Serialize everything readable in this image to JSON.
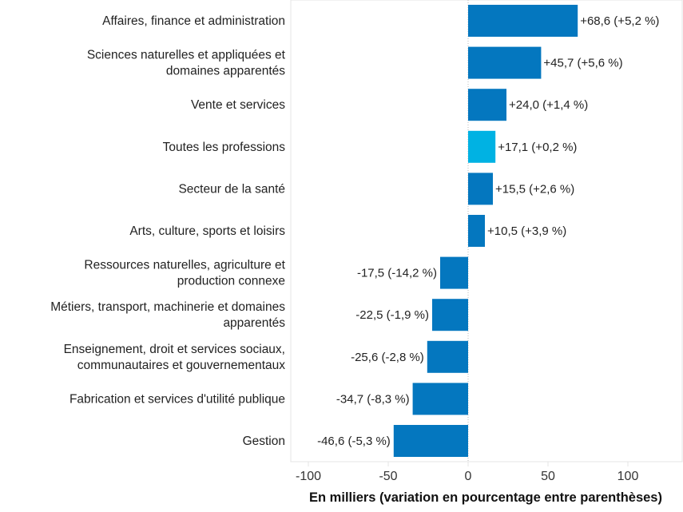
{
  "chart_data": {
    "type": "bar",
    "orientation": "horizontal",
    "categories": [
      [
        "Affaires, finance et administration"
      ],
      [
        "Sciences naturelles et appliquées et",
        "domaines apparentés"
      ],
      [
        "Vente et services"
      ],
      [
        "Toutes les professions"
      ],
      [
        "Secteur de la santé"
      ],
      [
        "Arts, culture, sports et loisirs"
      ],
      [
        "Ressources naturelles, agriculture et",
        "production connexe"
      ],
      [
        "Métiers, transport, machinerie et domaines",
        "apparentés"
      ],
      [
        "Enseignement, droit et services sociaux,",
        "communautaires et gouvernementaux"
      ],
      [
        "Fabrication et services d'utilité publique"
      ],
      [
        "Gestion"
      ]
    ],
    "values": [
      68.6,
      45.7,
      24.0,
      17.1,
      15.5,
      10.5,
      -17.5,
      -22.5,
      -25.6,
      -34.7,
      -46.6
    ],
    "data_labels": [
      "+68,6 (+5,2 %)",
      "+45,7 (+5,6 %)",
      "+24,0 (+1,4 %)",
      "+17,1 (+0,2 %)",
      "+15,5 (+2,6 %)",
      "+10,5 (+3,9 %)",
      "-17,5 (-14,2 %)",
      "-22,5 (-1,9 %)",
      "-25,6 (-2,8 %)",
      "-34,7 (-8,3 %)",
      "-46,6 (-5,3 %)"
    ],
    "highlight_index": 3,
    "xlabel": "En milliers (variation en pourcentage entre parenthèses)",
    "ylabel": "",
    "xlim": [
      -111,
      134
    ],
    "xticks": [
      -100,
      -50,
      0,
      50,
      100
    ],
    "xtick_labels": [
      "-100",
      "-50",
      "0",
      "50",
      "100"
    ],
    "grid": false,
    "colors": {
      "bar": "#0477BF",
      "highlight": "#00B2E3",
      "zero_line": "#bbbbbb",
      "frame": "#e4e4e4"
    }
  }
}
